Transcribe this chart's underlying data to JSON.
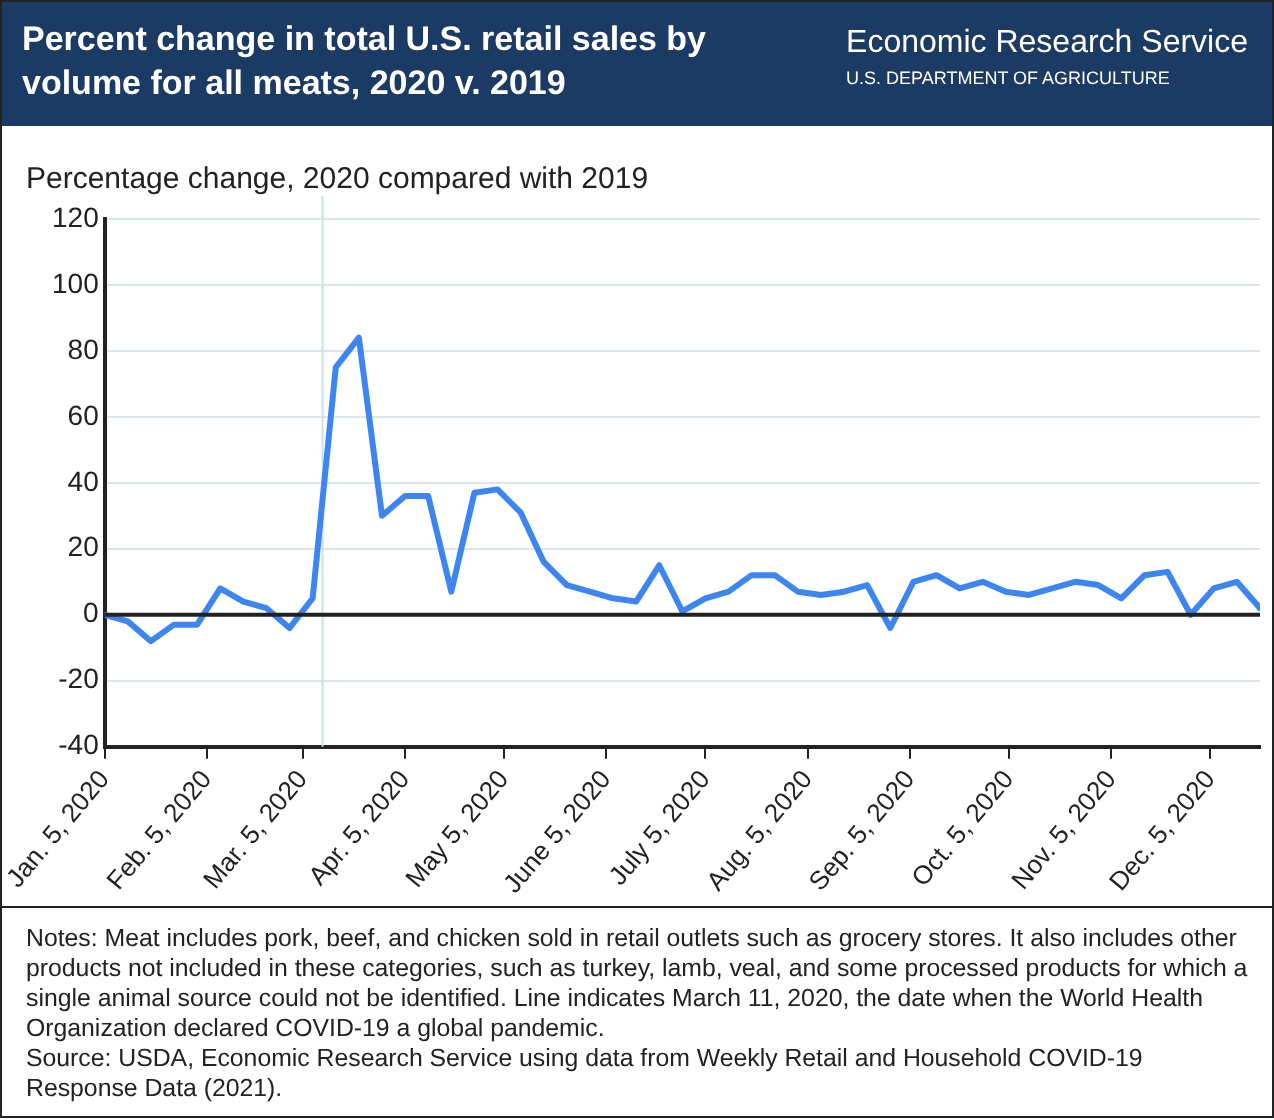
{
  "chart_data": {
    "type": "line",
    "title": "Percent change in total U.S. retail sales by volume for all meats, 2020 v. 2019",
    "ylabel": "Percentage change, 2020 compared with 2019",
    "annotations": [
      "Economic Research Service",
      "U.S. DEPARTMENT OF AGRICULTURE",
      "Notes: Meat includes pork, beef, and chicken sold in retail outlets such as grocery stores. It also includes other products not included in these categories, such as turkey, lamb, veal, and some processed products for which a single animal source could not be identified. Line indicates March 11, 2020, the date when the World Health Organization declared COVID-19 a global pandemic.",
      "Source: USDA, Economic Research Service using data from Weekly Retail and Household COVID-19 Response Data (2021)."
    ],
    "x": [
      "2020-01-05",
      "2020-01-12",
      "2020-01-19",
      "2020-01-26",
      "2020-02-02",
      "2020-02-09",
      "2020-02-16",
      "2020-02-23",
      "2020-03-01",
      "2020-03-08",
      "2020-03-15",
      "2020-03-22",
      "2020-03-29",
      "2020-04-05",
      "2020-04-12",
      "2020-04-19",
      "2020-04-26",
      "2020-05-03",
      "2020-05-10",
      "2020-05-17",
      "2020-05-24",
      "2020-05-31",
      "2020-06-07",
      "2020-06-14",
      "2020-06-21",
      "2020-06-28",
      "2020-07-05",
      "2020-07-12",
      "2020-07-19",
      "2020-07-26",
      "2020-08-02",
      "2020-08-09",
      "2020-08-16",
      "2020-08-23",
      "2020-08-30",
      "2020-09-06",
      "2020-09-13",
      "2020-09-20",
      "2020-09-27",
      "2020-10-04",
      "2020-10-11",
      "2020-10-18",
      "2020-10-25",
      "2020-11-01",
      "2020-11-08",
      "2020-11-15",
      "2020-11-22",
      "2020-11-29",
      "2020-12-06",
      "2020-12-13",
      "2020-12-20"
    ],
    "series": [
      {
        "color": "#3d85f0",
        "values": [
          0,
          -2,
          -8,
          -3,
          -3,
          8,
          4,
          2,
          -4,
          5,
          75,
          84,
          30,
          36,
          36,
          7,
          37,
          38,
          31,
          16,
          9,
          7,
          5,
          4,
          15,
          1,
          5,
          7,
          12,
          12,
          7,
          6,
          7,
          9,
          -4,
          10,
          12,
          8,
          10,
          7,
          6,
          8,
          10,
          9,
          5,
          12,
          13,
          0,
          8,
          10,
          2
        ]
      }
    ],
    "xlim": [
      "2020-01-05",
      "2020-12-20"
    ],
    "xticks": [
      {
        "value": "2020-01-05",
        "label": "Jan. 5, 2020"
      },
      {
        "value": "2020-02-05",
        "label": "Feb. 5, 2020"
      },
      {
        "value": "2020-03-05",
        "label": "Mar. 5, 2020"
      },
      {
        "value": "2020-04-05",
        "label": "Apr. 5, 2020"
      },
      {
        "value": "2020-05-05",
        "label": "May 5, 2020"
      },
      {
        "value": "2020-06-05",
        "label": "June 5, 2020"
      },
      {
        "value": "2020-07-05",
        "label": "July 5, 2020"
      },
      {
        "value": "2020-08-05",
        "label": "Aug. 5, 2020"
      },
      {
        "value": "2020-09-05",
        "label": "Sep. 5, 2020"
      },
      {
        "value": "2020-10-05",
        "label": "Oct. 5, 2020"
      },
      {
        "value": "2020-11-05",
        "label": "Nov. 5, 2020"
      },
      {
        "value": "2020-12-05",
        "label": "Dec. 5, 2020"
      }
    ],
    "ylim": [
      -40,
      120
    ],
    "yticks": [
      -40,
      -20,
      0,
      20,
      40,
      60,
      80,
      100,
      120
    ],
    "ref_lines": [
      {
        "axis": "x",
        "value": "2020-03-11",
        "color": "#cfe0e6"
      }
    ],
    "grid": "y",
    "legend": false,
    "marker": "none",
    "line_style": "solid"
  }
}
